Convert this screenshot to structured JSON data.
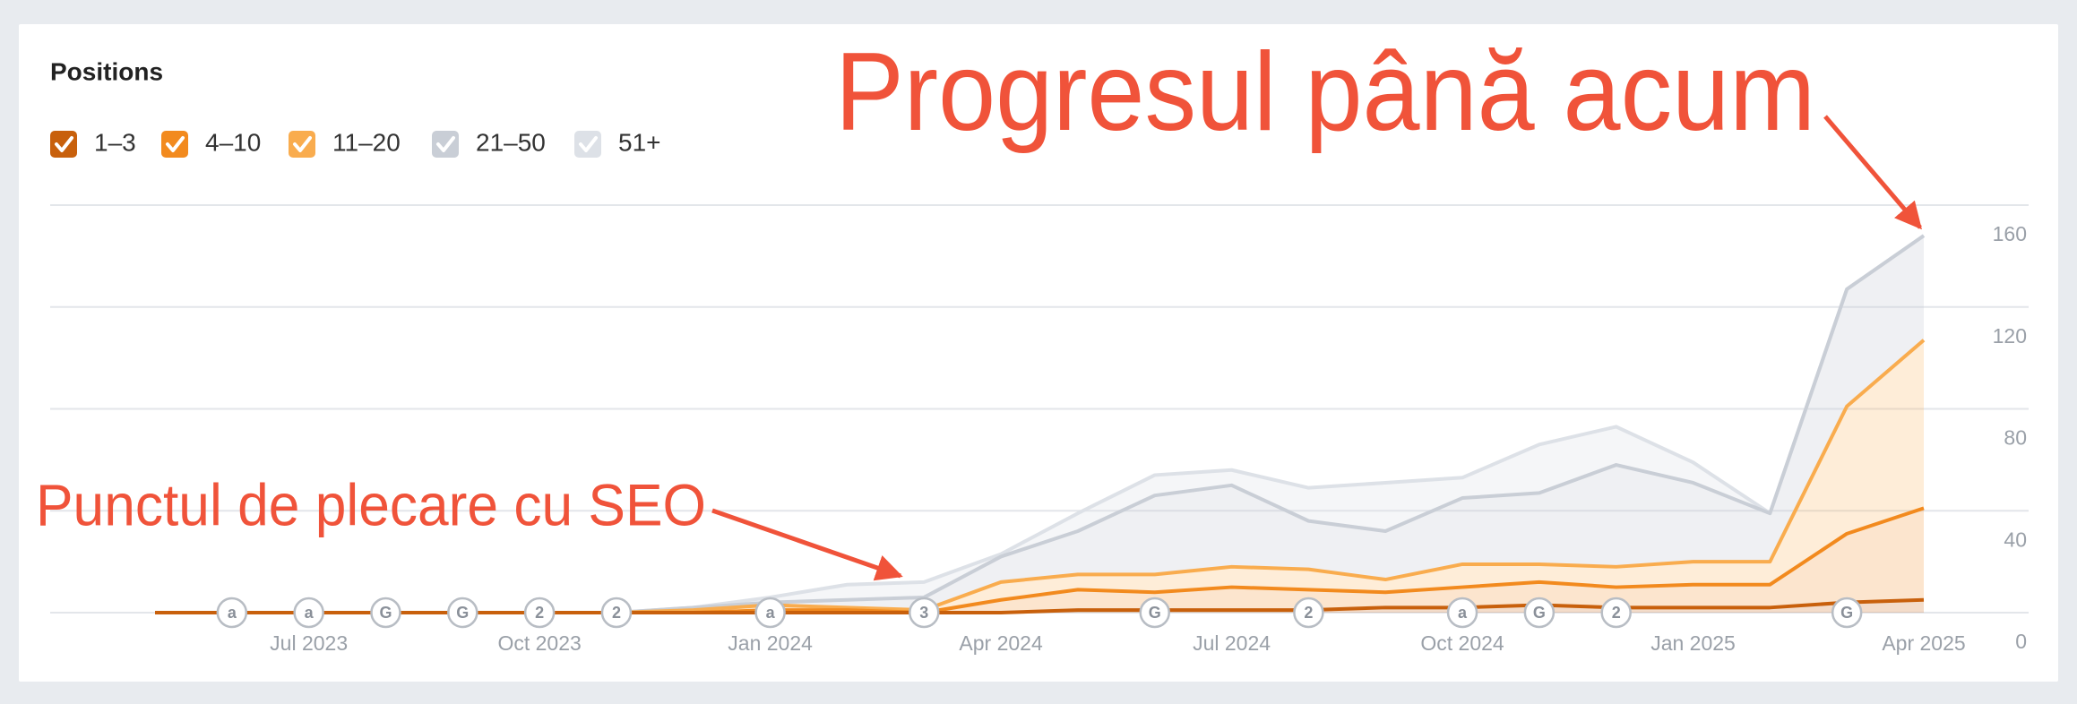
{
  "chart_data": {
    "type": "stacked_area",
    "title": "Positions",
    "annotations": [
      "Progresul până acum",
      "Punctul de plecare cu SEO"
    ],
    "categories": [
      null,
      null,
      "Jul 2023",
      null,
      null,
      "Oct 2023",
      null,
      null,
      "Jan 2024",
      null,
      null,
      "Apr 2024",
      null,
      null,
      "Jul 2024",
      null,
      null,
      "Oct 2024",
      null,
      null,
      "Jan 2025",
      null,
      null,
      "Apr 2025"
    ],
    "event_markers": [
      null,
      "a",
      "a",
      "G",
      "G",
      "2",
      "2",
      null,
      "a",
      null,
      "3",
      null,
      null,
      "G",
      null,
      "2",
      null,
      "a",
      "G",
      "2",
      null,
      null,
      "G",
      null
    ],
    "series": [
      {
        "name": "1–3",
        "color": "#c8600c",
        "values": [
          0,
          0,
          0,
          0,
          0,
          0,
          0,
          0,
          0,
          0,
          0,
          0,
          1,
          1,
          1,
          1,
          2,
          2,
          3,
          2,
          2,
          2,
          4,
          5
        ]
      },
      {
        "name": "4–10",
        "color": "#f28a1e",
        "values": [
          0,
          0,
          0,
          0,
          0,
          0,
          0,
          0,
          1,
          1,
          0,
          5,
          8,
          7,
          9,
          8,
          6,
          8,
          9,
          8,
          9,
          9,
          27,
          36
        ]
      },
      {
        "name": "11–20",
        "color": "#f9ac4e",
        "values": [
          0,
          0,
          0,
          0,
          0,
          0,
          0,
          1,
          2,
          1,
          1,
          7,
          6,
          7,
          8,
          8,
          5,
          9,
          7,
          8,
          9,
          9,
          50,
          66
        ]
      },
      {
        "name": "21–50",
        "color": "#c9ced6",
        "values": [
          0,
          0,
          0,
          0,
          0,
          0,
          0,
          1,
          1,
          3,
          5,
          10,
          17,
          31,
          32,
          19,
          19,
          26,
          28,
          40,
          31,
          19,
          46,
          41
        ]
      },
      {
        "name": "51+",
        "color": "#dde1e7",
        "values": [
          0,
          0,
          0,
          0,
          0,
          0,
          0,
          0,
          2,
          6,
          6,
          1,
          7,
          8,
          6,
          13,
          19,
          8,
          19,
          15,
          8,
          0,
          0,
          0
        ]
      }
    ],
    "ylim": [
      0,
      160
    ],
    "yticks": [
      0,
      40,
      80,
      120,
      160
    ],
    "grid": true
  }
}
